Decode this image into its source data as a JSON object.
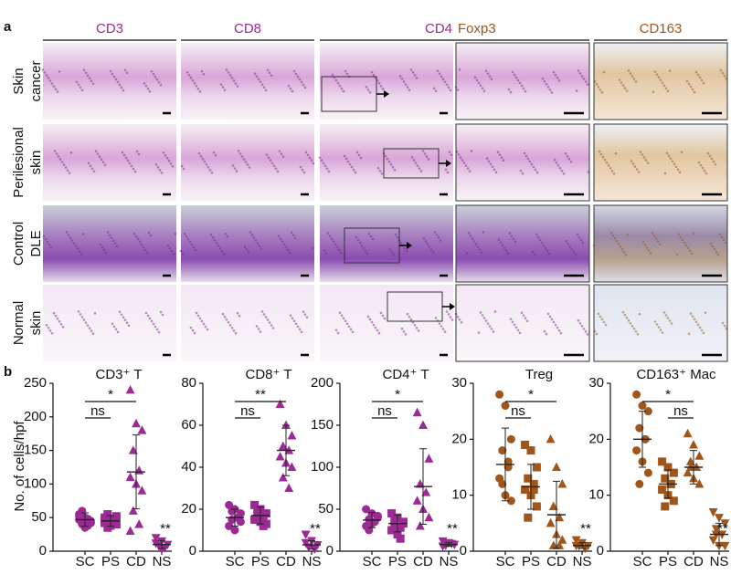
{
  "panel_a": {
    "label": "a",
    "columns": [
      "CD3",
      "CD8",
      "CD4",
      "Foxp3",
      "CD163"
    ],
    "rows": [
      [
        "Skin",
        "cancer"
      ],
      [
        "Perilesional",
        "skin"
      ],
      [
        "Control",
        "DLE"
      ],
      [
        "Normal",
        "skin"
      ]
    ]
  },
  "panel_b": {
    "label": "b",
    "y_label": "No. of cells/hpf"
  },
  "chart_data": [
    {
      "type": "strip",
      "title": "CD3⁺ T",
      "categories": [
        "SC",
        "PS",
        "CD",
        "NS"
      ],
      "color": "#9b2a94",
      "markers": [
        "circle",
        "square",
        "triangle",
        "triangle-down"
      ],
      "values": [
        [
          55,
          50,
          45,
          40,
          48,
          52,
          35,
          42,
          60,
          38,
          47
        ],
        [
          50,
          45,
          40,
          55,
          48,
          42,
          38,
          52,
          35,
          46,
          44
        ],
        [
          240,
          190,
          180,
          150,
          120,
          110,
          100,
          90,
          60,
          40,
          30
        ],
        [
          20,
          15,
          10,
          8,
          5,
          12,
          3
        ]
      ],
      "means": [
        47,
        45,
        118,
        10
      ],
      "sds": [
        10,
        8,
        55,
        6
      ],
      "ylim": [
        0,
        250
      ],
      "yticks": [
        0,
        50,
        100,
        150,
        200,
        250
      ],
      "comparisons": [
        {
          "between": [
            "SC",
            "PS"
          ],
          "label": "ns"
        },
        {
          "between": [
            "SC",
            "CD"
          ],
          "label": "*"
        }
      ],
      "marks": [
        {
          "over": "NS",
          "label": "**"
        }
      ]
    },
    {
      "type": "strip",
      "title": "CD8⁺ T",
      "categories": [
        "SC",
        "PS",
        "CD",
        "NS"
      ],
      "color": "#9b2a94",
      "markers": [
        "circle",
        "square",
        "triangle",
        "triangle-down"
      ],
      "values": [
        [
          22,
          20,
          18,
          15,
          16,
          12,
          10,
          14,
          19
        ],
        [
          22,
          20,
          18,
          17,
          16,
          15,
          14,
          13,
          19,
          12
        ],
        [
          70,
          60,
          55,
          50,
          48,
          45,
          42,
          40,
          35,
          30
        ],
        [
          8,
          5,
          3,
          2,
          1,
          4
        ]
      ],
      "means": [
        16,
        17,
        48,
        3
      ],
      "sds": [
        4,
        4,
        12,
        2
      ],
      "ylim": [
        0,
        80
      ],
      "yticks": [
        0,
        20,
        40,
        60,
        80
      ],
      "comparisons": [
        {
          "between": [
            "SC",
            "PS"
          ],
          "label": "ns"
        },
        {
          "between": [
            "SC",
            "CD"
          ],
          "label": "**"
        }
      ],
      "marks": [
        {
          "over": "NS",
          "label": "**"
        }
      ]
    },
    {
      "type": "strip",
      "title": "CD4⁺ T",
      "categories": [
        "SC",
        "PS",
        "CD",
        "NS"
      ],
      "color": "#9b2a94",
      "markers": [
        "circle",
        "square",
        "triangle",
        "triangle-down"
      ],
      "values": [
        [
          50,
          45,
          40,
          38,
          35,
          30,
          33,
          42,
          25
        ],
        [
          45,
          40,
          35,
          30,
          28,
          25,
          20,
          33,
          38,
          15
        ],
        [
          165,
          150,
          110,
          80,
          70,
          60,
          50,
          40,
          30
        ],
        [
          12,
          10,
          8,
          7,
          9,
          6
        ]
      ],
      "means": [
        37,
        33,
        77,
        8
      ],
      "sds": [
        9,
        10,
        45,
        2
      ],
      "ylim": [
        0,
        200
      ],
      "yticks": [
        0,
        50,
        100,
        150,
        200
      ],
      "comparisons": [
        {
          "between": [
            "SC",
            "PS"
          ],
          "label": "ns"
        },
        {
          "between": [
            "SC",
            "CD"
          ],
          "label": "*"
        }
      ],
      "marks": [
        {
          "over": "NS",
          "label": "**"
        }
      ]
    },
    {
      "type": "strip",
      "title": "Treg",
      "categories": [
        "SC",
        "PS",
        "CD",
        "NS"
      ],
      "color": "#a0561a",
      "markers": [
        "circle",
        "square",
        "triangle",
        "triangle-down"
      ],
      "values": [
        [
          28,
          26,
          20,
          18,
          15,
          13,
          10,
          9,
          12,
          16
        ],
        [
          19,
          18,
          15,
          13,
          12,
          11,
          10,
          8,
          6,
          11
        ],
        [
          20,
          15,
          12,
          8,
          6,
          5,
          3,
          2,
          1,
          1
        ],
        [
          2,
          1.5,
          1,
          1,
          0.5,
          1
        ]
      ],
      "means": [
        15.5,
        11.5,
        6.5,
        1
      ],
      "sds": [
        6.5,
        4,
        6,
        0.5
      ],
      "ylim": [
        0,
        30
      ],
      "yticks": [
        0,
        10,
        20,
        30
      ],
      "comparisons": [
        {
          "between": [
            "SC",
            "PS"
          ],
          "label": "ns"
        },
        {
          "between": [
            "SC",
            "CD"
          ],
          "label": "*"
        }
      ],
      "marks": [
        {
          "over": "NS",
          "label": "**"
        }
      ]
    },
    {
      "type": "strip",
      "title": "CD163⁺ Mac",
      "categories": [
        "SC",
        "PS",
        "CD",
        "NS"
      ],
      "color": "#a0561a",
      "markers": [
        "circle",
        "square",
        "triangle",
        "triangle-down"
      ],
      "values": [
        [
          28,
          26,
          25,
          22,
          20,
          18,
          16,
          14,
          12,
          20
        ],
        [
          16,
          15,
          14,
          13,
          12,
          11,
          10,
          9,
          8,
          12
        ],
        [
          21,
          19,
          17,
          16,
          15,
          14,
          13,
          12,
          15
        ],
        [
          7,
          6,
          5,
          4,
          3,
          2,
          1,
          1,
          3
        ]
      ],
      "means": [
        20,
        12,
        15,
        3
      ],
      "sds": [
        5,
        2.5,
        3,
        2
      ],
      "ylim": [
        0,
        30
      ],
      "yticks": [
        0,
        10,
        20,
        30
      ],
      "comparisons": [
        {
          "between": [
            "PS",
            "CD"
          ],
          "label": "ns"
        },
        {
          "between": [
            "SC",
            "CD"
          ],
          "label": "*"
        }
      ],
      "marks": [
        {
          "over": "NS",
          "label": "**"
        }
      ]
    }
  ]
}
